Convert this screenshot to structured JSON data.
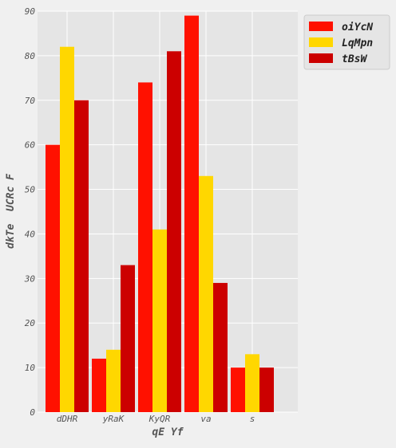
{
  "chart_data": {
    "type": "bar",
    "title": "",
    "xlabel": "qE Yf",
    "ylabel": "dkTe  UCRc F",
    "categories": [
      "dDHR",
      "yRaK",
      "KyQR",
      "va",
      "s"
    ],
    "series": [
      {
        "name": "oiYcN",
        "color": "#ff1100",
        "values": [
          60,
          12,
          74,
          89,
          10
        ]
      },
      {
        "name": "LqMpn",
        "color": "#ffd700",
        "values": [
          82,
          14,
          41,
          53,
          13
        ]
      },
      {
        "name": "tBsW",
        "color": "#cc0000",
        "values": [
          70,
          33,
          81,
          29,
          10
        ]
      }
    ],
    "ylim": [
      0,
      90
    ],
    "yticks": [
      0,
      10,
      20,
      30,
      40,
      50,
      60,
      70,
      80,
      90
    ],
    "grid": true,
    "legend_position": "top-right-outside"
  }
}
